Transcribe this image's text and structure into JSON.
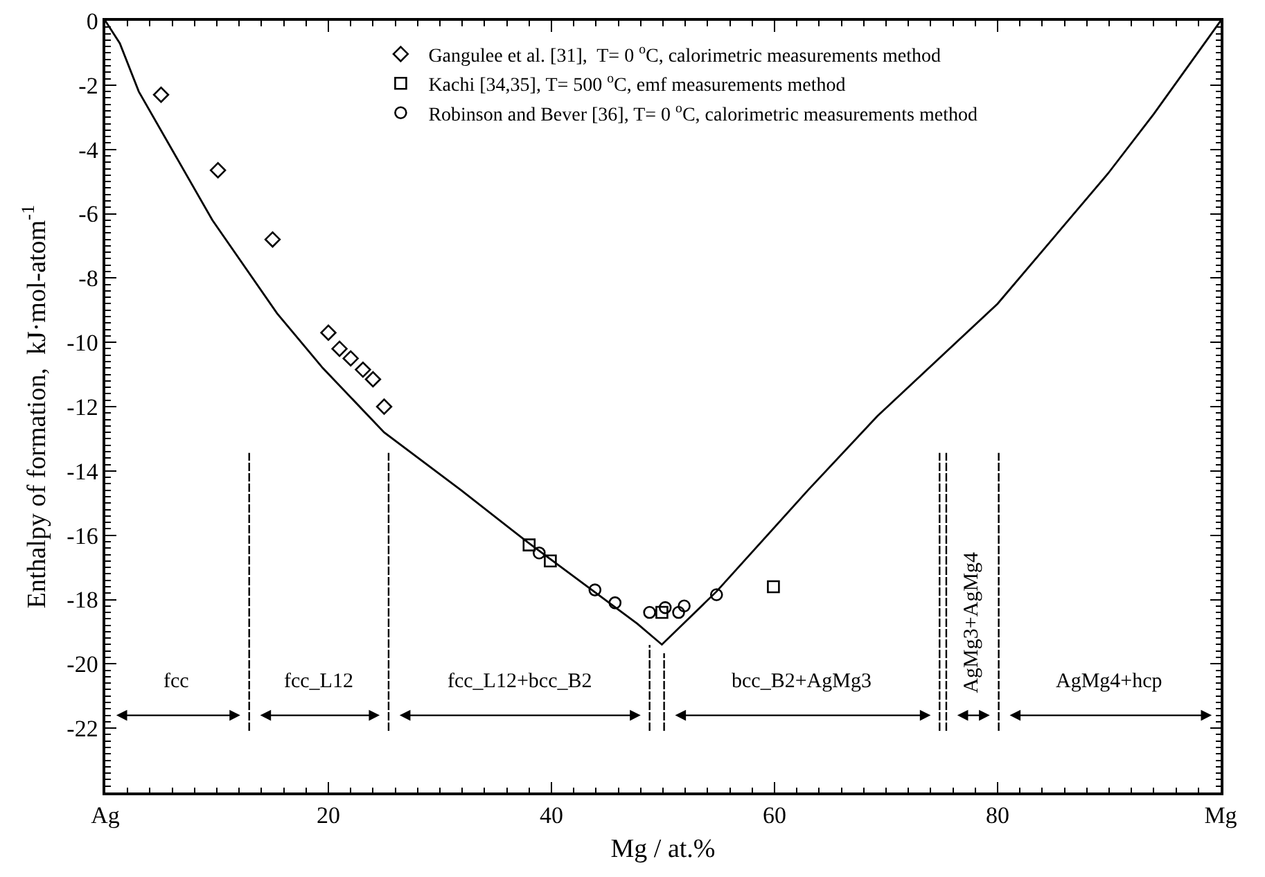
{
  "chart_data": {
    "type": "scatter",
    "xlabel": "Mg / at.%",
    "ylabel": "Enthalpy of formation,  kJ·mol-atom$^{-1}$",
    "xlim": [
      0,
      100
    ],
    "xticks": [
      {
        "value": 0,
        "label": "Ag"
      },
      20,
      40,
      60,
      80,
      {
        "value": 100,
        "label": "Mg"
      }
    ],
    "ylim": [
      -24,
      0
    ],
    "yticks": [
      0,
      -2,
      -4,
      -6,
      -8,
      -10,
      -12,
      -14,
      -16,
      -18,
      -20,
      -22
    ],
    "grid": false,
    "legend": "top",
    "series": [
      {
        "type": "line",
        "color": "#000000",
        "marker": "none",
        "line_style": "solid",
        "x": [
          0,
          1.3,
          3.0,
          6.3,
          9.6,
          15.4,
          19.5,
          25.0,
          31.9,
          37.8,
          47.7,
          49.9,
          54.8,
          63.0,
          69.2,
          80.0,
          89.9,
          94.0,
          100
        ],
        "values": [
          0,
          -0.7,
          -2.2,
          -4.2,
          -6.2,
          -9.1,
          -10.8,
          -12.8,
          -14.6,
          -16.2,
          -18.75,
          -19.4,
          -17.75,
          -14.6,
          -12.3,
          -8.8,
          -4.75,
          -2.9,
          0
        ]
      },
      {
        "name": "Gangulee et al. [31],  T= 0 $^{o}$C, calorimetric measurements method",
        "color": "#000000",
        "marker": "diamond",
        "x": [
          5.0,
          10.1,
          15.0,
          20.0,
          21.0,
          22.0,
          23.1,
          24.0,
          25.0
        ],
        "values": [
          -2.3,
          -4.65,
          -6.8,
          -9.7,
          -10.2,
          -10.5,
          -10.85,
          -11.15,
          -12.0
        ]
      },
      {
        "name": "Kachi [34,35], T= 500 $^{o}$C, emf measurements method",
        "color": "#000000",
        "marker": "square",
        "x": [
          38.0,
          39.9,
          49.9,
          59.9
        ],
        "values": [
          -16.3,
          -16.8,
          -18.4,
          -17.6
        ]
      },
      {
        "name": "Robinson and Bever [36], T= 0 $^{o}$C, calorimetric measurements method",
        "color": "#000000",
        "marker": "circle",
        "x": [
          38.9,
          43.9,
          45.7,
          48.8,
          50.2,
          51.4,
          51.9,
          54.8
        ],
        "values": [
          -16.55,
          -17.7,
          -18.1,
          -18.4,
          -18.25,
          -18.4,
          -18.2,
          -17.85
        ]
      }
    ],
    "ref_lines": [
      {
        "axis": "x",
        "value": 12.9,
        "color": "#000000",
        "line_style": "dashed"
      },
      {
        "axis": "x",
        "value": 25.4,
        "color": "#000000",
        "line_style": "dashed"
      },
      {
        "axis": "x",
        "value": 48.8,
        "color": "#000000",
        "line_style": "dashed"
      },
      {
        "axis": "x",
        "value": 50.1,
        "color": "#000000",
        "line_style": "dashed"
      },
      {
        "axis": "x",
        "value": 74.8,
        "color": "#000000",
        "line_style": "dashed"
      },
      {
        "axis": "x",
        "value": 75.4,
        "color": "#000000",
        "line_style": "dashed"
      },
      {
        "axis": "x",
        "value": 80.1,
        "color": "#000000",
        "line_style": "dashed"
      }
    ],
    "annotations": [
      "fcc",
      "fcc_L12",
      "fcc_L12+bcc_B2",
      "bcc_B2+AgMg3",
      "AgMg3+AgMg4",
      "AgMg4+hcp"
    ]
  }
}
